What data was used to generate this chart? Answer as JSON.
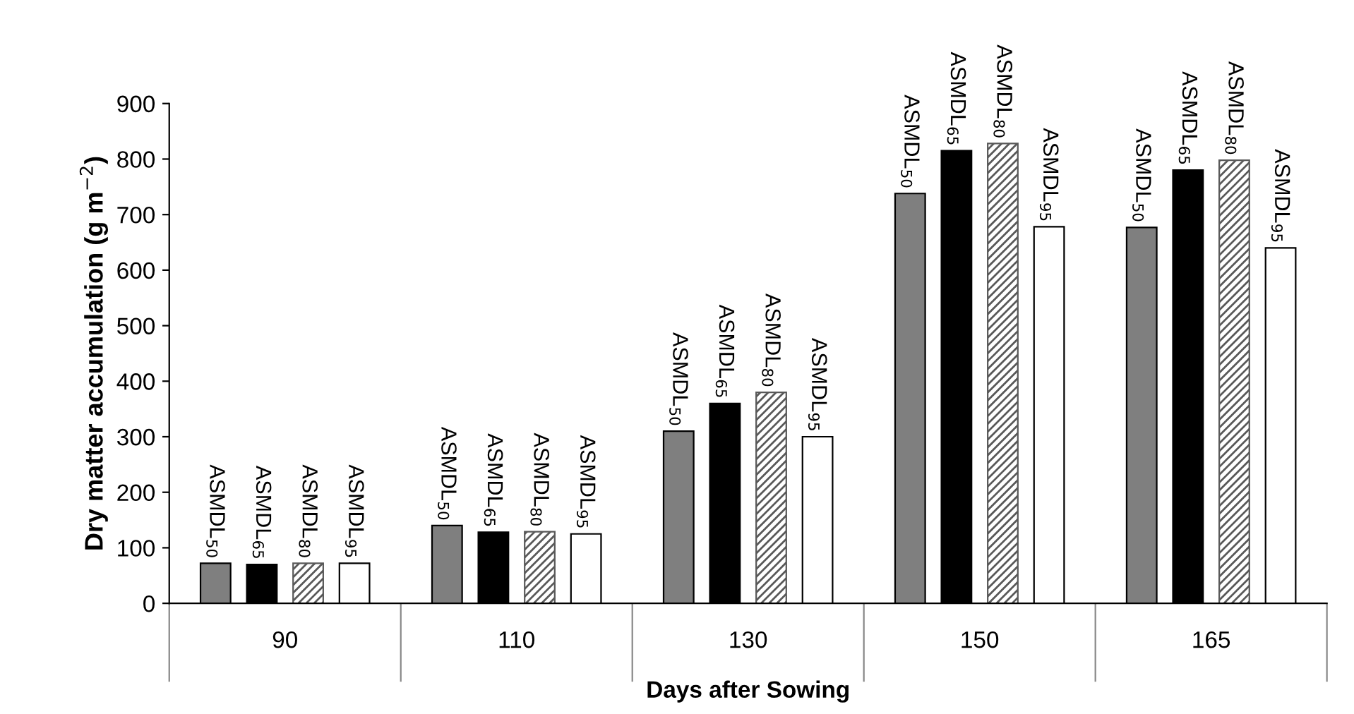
{
  "chart_data": {
    "type": "bar",
    "xlabel": "Days after Sowing",
    "ylabel": "Dry matter accumulation (g m$^{−2}$)",
    "categories": [
      "90",
      "110",
      "130",
      "150",
      "165"
    ],
    "series": [
      {
        "name": "ASMDL$_{50}$",
        "color": "#7f7f7f",
        "values": [
          72,
          140,
          310,
          738,
          677
        ]
      },
      {
        "name": "ASMDL$_{65}$",
        "color": "#000000",
        "values": [
          70,
          128,
          360,
          815,
          780
        ]
      },
      {
        "name": "ASMDL$_{80}$",
        "color": "#595959",
        "values": [
          72,
          129,
          380,
          828,
          798
        ]
      },
      {
        "name": "ASMDL$_{95}$",
        "color": "#ffffff",
        "values": [
          72,
          125,
          300,
          678,
          640
        ]
      }
    ],
    "ylim": [
      0,
      900
    ],
    "yticks": [
      0,
      100,
      200,
      300,
      400,
      500,
      600,
      700,
      800,
      900
    ],
    "grid": false,
    "legend": false
  }
}
